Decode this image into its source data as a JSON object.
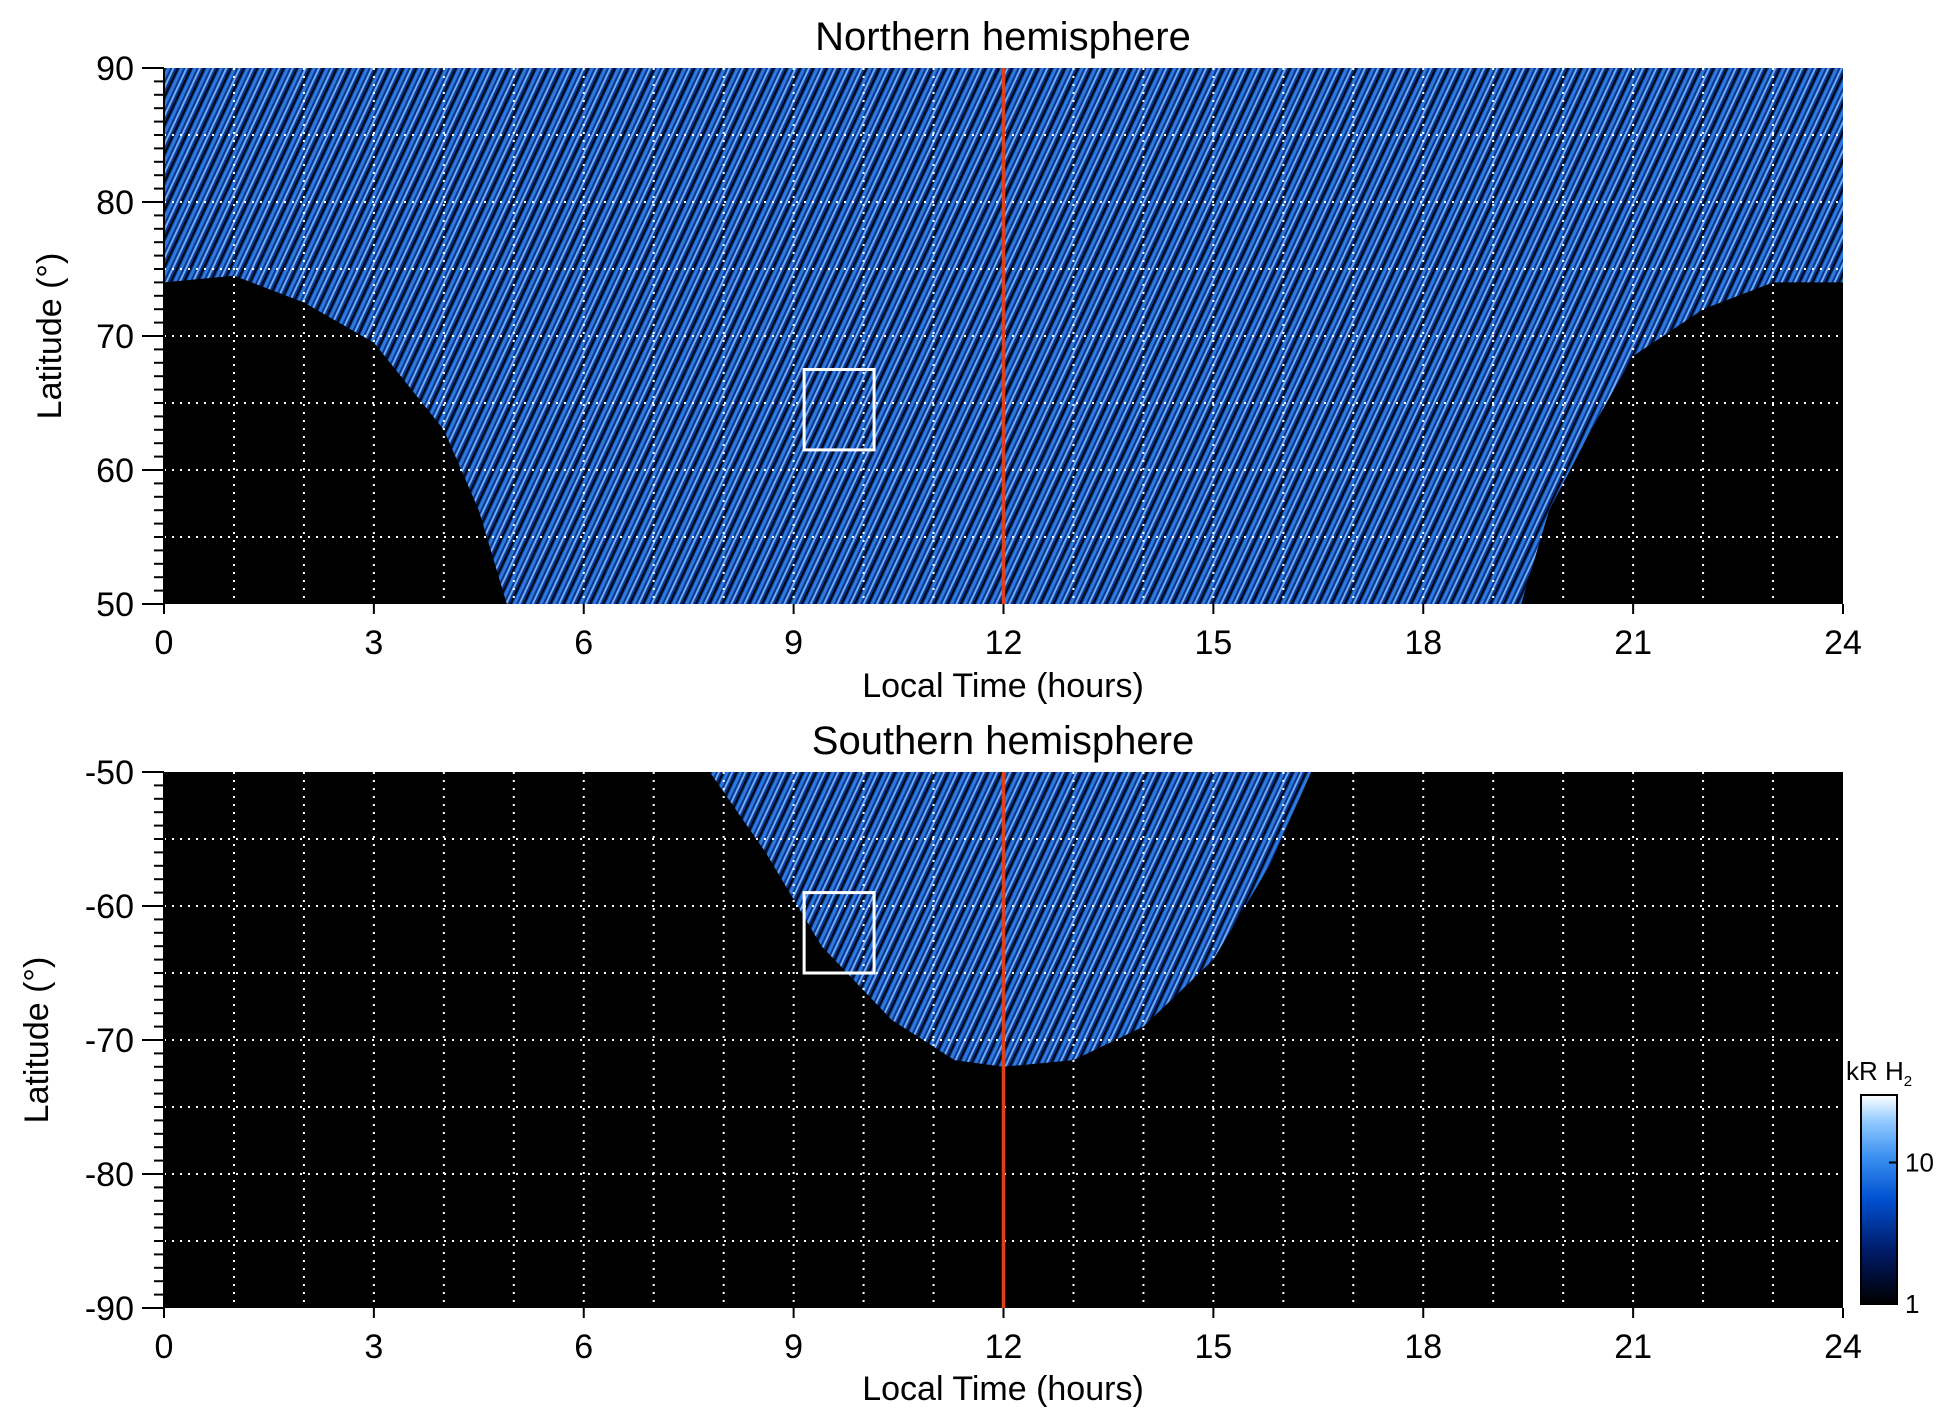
{
  "chart_data": [
    {
      "type": "heatmap",
      "title": "Northern hemisphere",
      "xlabel": "Local Time (hours)",
      "ylabel": "Latitude (°)",
      "xlim": [
        0,
        24
      ],
      "ylim": [
        50,
        90
      ],
      "xticks": [
        "0",
        "3",
        "6",
        "9",
        "12",
        "15",
        "18",
        "21",
        "24"
      ],
      "yticks": [
        "50",
        "60",
        "70",
        "80",
        "90"
      ],
      "grid": true,
      "marker_line_x": 12,
      "marker_line_color": "#e0401a",
      "highlight_box": {
        "x": [
          9.15,
          10.15
        ],
        "y": [
          61.5,
          67.5
        ]
      },
      "coverage_edge": [
        {
          "x": 0,
          "y": 74
        },
        {
          "x": 1,
          "y": 74.5
        },
        {
          "x": 2,
          "y": 72.5
        },
        {
          "x": 3,
          "y": 69.5
        },
        {
          "x": 4,
          "y": 63
        },
        {
          "x": 4.5,
          "y": 57
        },
        {
          "x": 4.9,
          "y": 50
        },
        {
          "x": 19.4,
          "y": 50
        },
        {
          "x": 19.8,
          "y": 57
        },
        {
          "x": 20.4,
          "y": 63
        },
        {
          "x": 21,
          "y": 68.5
        },
        {
          "x": 22,
          "y": 72
        },
        {
          "x": 23,
          "y": 74
        },
        {
          "x": 24,
          "y": 74
        }
      ]
    },
    {
      "type": "heatmap",
      "title": "Southern hemisphere",
      "xlabel": "Local Time (hours)",
      "ylabel": "Latitude (°)",
      "xlim": [
        0,
        24
      ],
      "ylim": [
        -90,
        -50
      ],
      "xticks": [
        "0",
        "3",
        "6",
        "9",
        "12",
        "15",
        "18",
        "21",
        "24"
      ],
      "yticks": [
        "-50",
        "-60",
        "-70",
        "-80",
        "-90"
      ],
      "grid": true,
      "marker_line_x": 12,
      "marker_line_color": "#e0401a",
      "highlight_box": {
        "x": [
          9.15,
          10.15
        ],
        "y": [
          -65,
          -59
        ]
      },
      "coverage_edge": [
        {
          "x": 7.8,
          "y": -50
        },
        {
          "x": 8.6,
          "y": -56
        },
        {
          "x": 9.4,
          "y": -63
        },
        {
          "x": 10.4,
          "y": -68.5
        },
        {
          "x": 11.3,
          "y": -71.5
        },
        {
          "x": 12,
          "y": -72
        },
        {
          "x": 13,
          "y": -71.5
        },
        {
          "x": 14,
          "y": -69
        },
        {
          "x": 15,
          "y": -64
        },
        {
          "x": 15.8,
          "y": -57
        },
        {
          "x": 16.4,
          "y": -50
        }
      ]
    }
  ],
  "colorbar": {
    "label": "kR H",
    "label_subscript": "2",
    "ticks": [
      "10",
      "1"
    ],
    "tick_values": [
      10,
      1
    ],
    "range": [
      1,
      30
    ],
    "scale": "log",
    "colors": [
      "#000000",
      "#001a66",
      "#0050d0",
      "#3a8ff0",
      "#8fc8ff",
      "#ffffff"
    ]
  }
}
